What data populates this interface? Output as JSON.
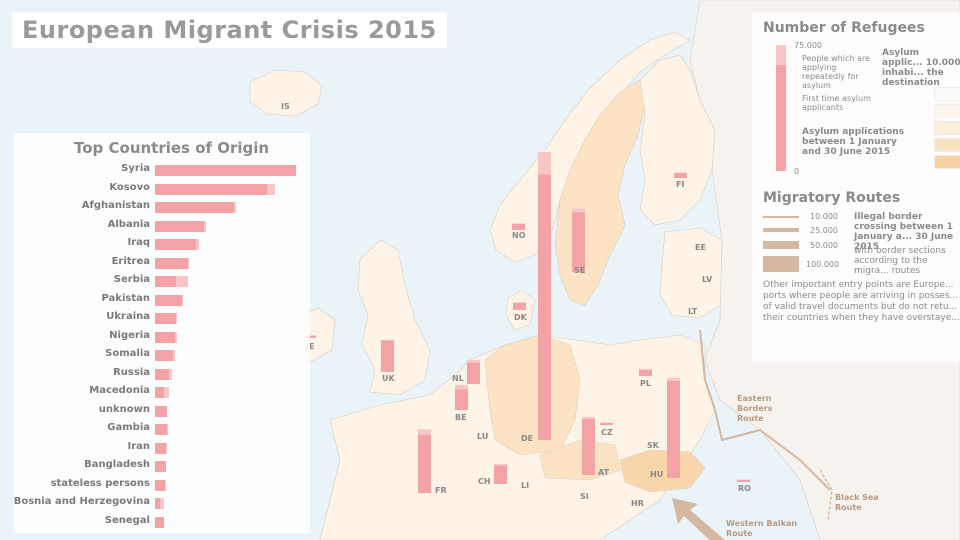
{
  "title": "European Migrant Crisis 2015",
  "colors": {
    "bar_first": "#f3a3a5",
    "bar_repeat": "#f8c6c7",
    "route": "#d4b8a2",
    "land_light": "#fdf3e6",
    "land_mid": "#fbe3c4",
    "sea": "#e9f3f8"
  },
  "origin": {
    "title": "Top Countries of Origin",
    "items": [
      {
        "name": "Syria",
        "first": 141,
        "repeat": 0
      },
      {
        "name": "Kosovo",
        "first": 112,
        "repeat": 8
      },
      {
        "name": "Afghanistan",
        "first": 79,
        "repeat": 2
      },
      {
        "name": "Albania",
        "first": 49,
        "repeat": 2
      },
      {
        "name": "Iraq",
        "first": 41,
        "repeat": 3
      },
      {
        "name": "Eritrea",
        "first": 33,
        "repeat": 1
      },
      {
        "name": "Serbia",
        "first": 21,
        "repeat": 12
      },
      {
        "name": "Pakistan",
        "first": 27,
        "repeat": 1
      },
      {
        "name": "Ukraina",
        "first": 21,
        "repeat": 1
      },
      {
        "name": "Nigeria",
        "first": 20,
        "repeat": 2
      },
      {
        "name": "Somalia",
        "first": 18,
        "repeat": 2
      },
      {
        "name": "Russia",
        "first": 14,
        "repeat": 3
      },
      {
        "name": "Macedonia",
        "first": 9,
        "repeat": 5
      },
      {
        "name": "unknown",
        "first": 12,
        "repeat": 0
      },
      {
        "name": "Gambia",
        "first": 12,
        "repeat": 1
      },
      {
        "name": "Iran",
        "first": 11,
        "repeat": 1
      },
      {
        "name": "Bangladesh",
        "first": 11,
        "repeat": 0
      },
      {
        "name": "stateless persons",
        "first": 10,
        "repeat": 1
      },
      {
        "name": "Bosnia and Herzegovina",
        "first": 5,
        "repeat": 4
      },
      {
        "name": "Senegal",
        "first": 9,
        "repeat": 0
      }
    ]
  },
  "legend": {
    "refugees_title": "Number of Refugees",
    "scale_top": "75.000",
    "scale_bottom": "0",
    "repeat_label": "People which are applying repeatedly for asylum",
    "first_label": "First time asylum applicants",
    "period_label": "Asylum applications between 1 January and 30 June 2015",
    "density_title": "Asylum applic... 10.000 inhabi... the destination",
    "routes_title": "Migratory Routes",
    "route_steps": [
      "10.000",
      "25.000",
      "50.000",
      "100.000"
    ],
    "illegal_label": "Illegal border crossing between 1 January a... 30 June 2015",
    "sections_label": "with border sections according to the migra... routes",
    "note": "Other important entry points are Europe... ports where people are arriving in posses... of valid travel documents but do not retu... their countries when they have overstaye..."
  },
  "country_labels": [
    "IS",
    "NO",
    "SE",
    "FI",
    "EE",
    "LV",
    "LT",
    "DK",
    "IE",
    "UK",
    "NL",
    "BE",
    "LU",
    "DE",
    "PL",
    "CZ",
    "SK",
    "AT",
    "HU",
    "FR",
    "CH",
    "LI",
    "SI",
    "HR",
    "RO"
  ],
  "country_bars": [
    {
      "code": "NO",
      "first": 1600,
      "repeat": 200
    },
    {
      "code": "SE",
      "first": 16000,
      "repeat": 1000
    },
    {
      "code": "FI",
      "first": 1400,
      "repeat": 0
    },
    {
      "code": "DK",
      "first": 1900,
      "repeat": 200
    },
    {
      "code": "IE",
      "first": 600,
      "repeat": 100
    },
    {
      "code": "UK",
      "first": 8500,
      "repeat": 0
    },
    {
      "code": "NL",
      "first": 5800,
      "repeat": 600
    },
    {
      "code": "BE",
      "first": 5500,
      "repeat": 1200
    },
    {
      "code": "DE",
      "first": 71000,
      "repeat": 6000
    },
    {
      "code": "PL",
      "first": 1600,
      "repeat": 300
    },
    {
      "code": "CZ",
      "first": 500,
      "repeat": 100
    },
    {
      "code": "AT",
      "first": 15000,
      "repeat": 500
    },
    {
      "code": "HU",
      "first": 26000,
      "repeat": 800
    },
    {
      "code": "FR",
      "first": 15500,
      "repeat": 1500
    },
    {
      "code": "CH",
      "first": 5000,
      "repeat": 300
    },
    {
      "code": "RO",
      "first": 600,
      "repeat": 0
    }
  ],
  "route_labels": [
    "Eastern Borders Route",
    "Black Sea Route",
    "Western Balkan Route"
  ]
}
